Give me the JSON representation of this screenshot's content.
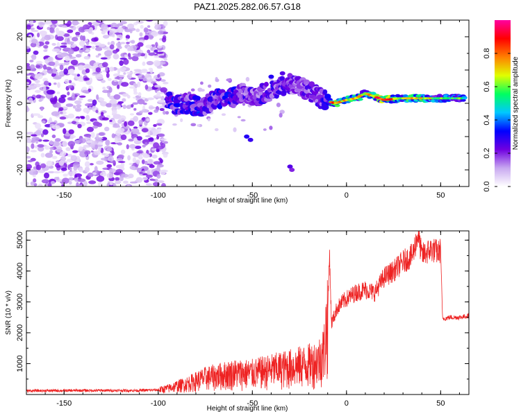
{
  "title": "PAZ1.2025.282.06.57.G18",
  "chart_data": [
    {
      "type": "heatmap",
      "name": "spectrogram",
      "xlabel": "Height of straight line (km)",
      "ylabel": "Frequency (Hz)",
      "xlim": [
        -170,
        65
      ],
      "ylim": [
        -25,
        25
      ],
      "xticks": [
        -150,
        -100,
        -50,
        0,
        50
      ],
      "yticks": [
        -20,
        -10,
        0,
        10,
        20
      ],
      "colorbar": {
        "label": "Normalized spectral amplitude",
        "range": [
          0,
          1
        ],
        "ticks": [
          0.0,
          0.2,
          0.4,
          0.6,
          0.8
        ],
        "tick_labels": [
          "0.0",
          "0.2",
          "0.4",
          "0.6",
          "0.8"
        ],
        "colors": [
          "#ffffff",
          "#c8a8f0",
          "#7000e0",
          "#0000ff",
          "#00c8ff",
          "#00ff60",
          "#e0ff00",
          "#ff8000",
          "#ff0000",
          "#ff00a0"
        ]
      },
      "ridge": [
        {
          "x": -95,
          "y": 0.5,
          "amp": 0.35
        },
        {
          "x": -90,
          "y": -0.5,
          "amp": 0.4
        },
        {
          "x": -85,
          "y": 0,
          "amp": 0.35
        },
        {
          "x": -78,
          "y": -1,
          "amp": 0.4
        },
        {
          "x": -70,
          "y": 1,
          "amp": 0.35
        },
        {
          "x": -62,
          "y": 2,
          "amp": 0.4
        },
        {
          "x": -55,
          "y": 3,
          "amp": 0.35
        },
        {
          "x": -48,
          "y": 2,
          "amp": 0.3
        },
        {
          "x": -42,
          "y": 3.5,
          "amp": 0.35
        },
        {
          "x": -35,
          "y": 5,
          "amp": 0.35
        },
        {
          "x": -30,
          "y": 6,
          "amp": 0.3
        },
        {
          "x": -25,
          "y": 5,
          "amp": 0.3
        },
        {
          "x": -18,
          "y": 3,
          "amp": 0.3
        },
        {
          "x": -12,
          "y": 1,
          "amp": 0.35
        },
        {
          "x": -6,
          "y": 0,
          "amp": 0.75
        },
        {
          "x": 0,
          "y": 1,
          "amp": 0.6
        },
        {
          "x": 5,
          "y": 1.5,
          "amp": 0.7
        },
        {
          "x": 10,
          "y": 3,
          "amp": 0.5
        },
        {
          "x": 15,
          "y": 2,
          "amp": 0.75
        },
        {
          "x": 20,
          "y": 1,
          "amp": 0.85
        },
        {
          "x": 28,
          "y": 1.5,
          "amp": 0.6
        },
        {
          "x": 36,
          "y": 1.5,
          "amp": 0.75
        },
        {
          "x": 45,
          "y": 1.5,
          "amp": 0.55
        },
        {
          "x": 55,
          "y": 1.5,
          "amp": 0.5
        },
        {
          "x": 63,
          "y": 1.5,
          "amp": 0.5
        }
      ]
    },
    {
      "type": "line",
      "name": "snr",
      "xlabel": "Height of straight line (km)",
      "ylabel": "SNR (10 * v/v)",
      "xlim": [
        -170,
        65
      ],
      "ylim": [
        0,
        5300
      ],
      "xticks": [
        -150,
        -100,
        -50,
        0,
        50
      ],
      "yticks": [
        1000,
        2000,
        3000,
        4000,
        5000
      ],
      "color": "#ee2222",
      "series": [
        {
          "name": "SNR envelope",
          "x": [
            -170,
            -140,
            -110,
            -100,
            -95,
            -90,
            -85,
            -80,
            -75,
            -70,
            -65,
            -60,
            -55,
            -50,
            -45,
            -40,
            -35,
            -30,
            -25,
            -20,
            -15,
            -12,
            -10,
            -9,
            -8,
            -5,
            -2,
            0,
            5,
            10,
            15,
            20,
            25,
            30,
            35,
            38,
            40,
            45,
            49,
            50,
            51,
            55,
            60,
            65
          ],
          "y": [
            120,
            130,
            130,
            150,
            200,
            280,
            350,
            450,
            550,
            600,
            650,
            700,
            700,
            700,
            750,
            800,
            850,
            900,
            950,
            1000,
            1100,
            1400,
            2600,
            4600,
            2300,
            2800,
            3000,
            3100,
            3300,
            3400,
            3300,
            3800,
            4000,
            4300,
            4500,
            5200,
            4500,
            4700,
            4600,
            4700,
            2450,
            2500,
            2500,
            2550
          ]
        }
      ]
    }
  ]
}
